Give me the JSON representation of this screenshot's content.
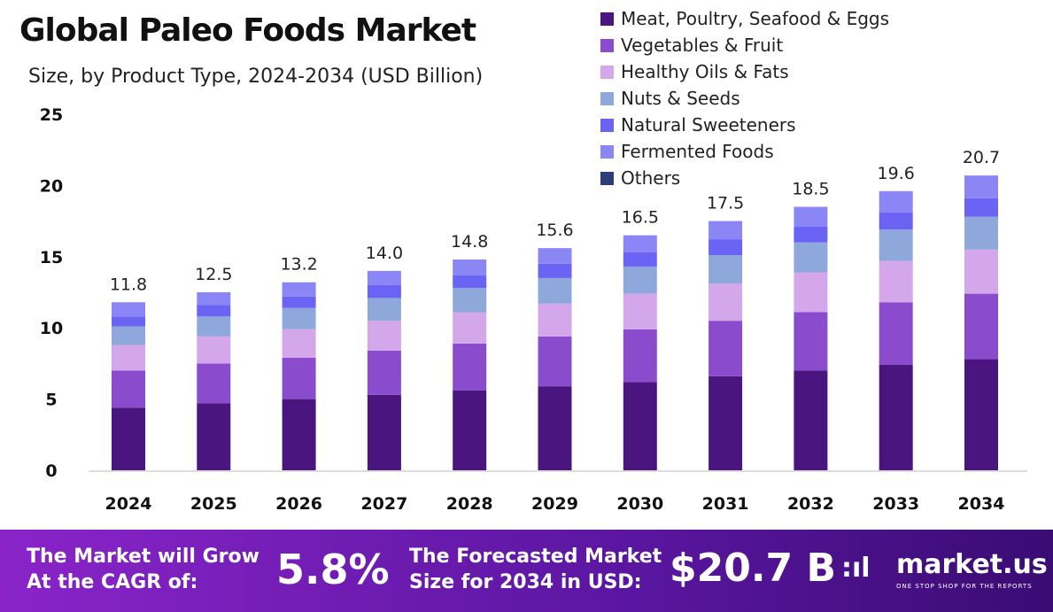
{
  "title": "Global Paleo Foods Market",
  "subtitle": "Size, by Product Type, 2024-2034 (USD Billion)",
  "chart_data": {
    "type": "bar",
    "stacked": true,
    "categories": [
      "2024",
      "2025",
      "2026",
      "2027",
      "2028",
      "2029",
      "2030",
      "2031",
      "2032",
      "2033",
      "2034"
    ],
    "totals": [
      "11.8",
      "12.5",
      "13.2",
      "14.0",
      "14.8",
      "15.6",
      "16.5",
      "17.5",
      "18.5",
      "19.6",
      "20.7"
    ],
    "ylim": [
      0,
      25
    ],
    "yticks": [
      "0",
      "5",
      "10",
      "15",
      "20",
      "25"
    ],
    "grid": false,
    "legend_position": "top-right",
    "series": [
      {
        "name": "Meat, Poultry, Seafood & Eggs",
        "color": "#4b1580",
        "values": [
          4.4,
          4.7,
          5.0,
          5.3,
          5.6,
          5.9,
          6.2,
          6.6,
          7.0,
          7.4,
          7.8
        ]
      },
      {
        "name": "Vegetables & Fruit",
        "color": "#8a4ccc",
        "values": [
          2.6,
          2.8,
          2.9,
          3.1,
          3.3,
          3.5,
          3.7,
          3.9,
          4.1,
          4.4,
          4.6
        ]
      },
      {
        "name": "Healthy Oils & Fats",
        "color": "#d4a6ea",
        "values": [
          1.8,
          1.9,
          2.0,
          2.1,
          2.2,
          2.3,
          2.5,
          2.6,
          2.8,
          2.9,
          3.1
        ]
      },
      {
        "name": "Nuts & Seeds",
        "color": "#8fa8dc",
        "values": [
          1.3,
          1.4,
          1.5,
          1.6,
          1.7,
          1.8,
          1.9,
          2.0,
          2.1,
          2.2,
          2.3
        ]
      },
      {
        "name": "Natural Sweeteners",
        "color": "#6b63f4",
        "values": [
          0.7,
          0.8,
          0.8,
          0.9,
          0.9,
          1.0,
          1.0,
          1.1,
          1.1,
          1.2,
          1.3
        ]
      },
      {
        "name": "Fermented Foods",
        "color": "#8b86f6",
        "values": [
          1.0,
          0.9,
          1.0,
          1.0,
          1.1,
          1.1,
          1.2,
          1.3,
          1.4,
          1.5,
          1.6
        ]
      },
      {
        "name": "Others",
        "color": "#2a3f7a",
        "values": [
          0,
          0,
          0,
          0,
          0,
          0,
          0,
          0,
          0,
          0,
          0
        ]
      }
    ]
  },
  "banner": {
    "cagr_label_1": "The Market will Grow",
    "cagr_label_2": "At the CAGR of:",
    "cagr_value": "5.8%",
    "forecast_label_1": "The Forecasted Market",
    "forecast_label_2": "Size for 2034 in USD:",
    "forecast_value": "$20.7 B",
    "logo_name": "market.us",
    "logo_tagline": "ONE STOP SHOP FOR THE REPORTS"
  }
}
